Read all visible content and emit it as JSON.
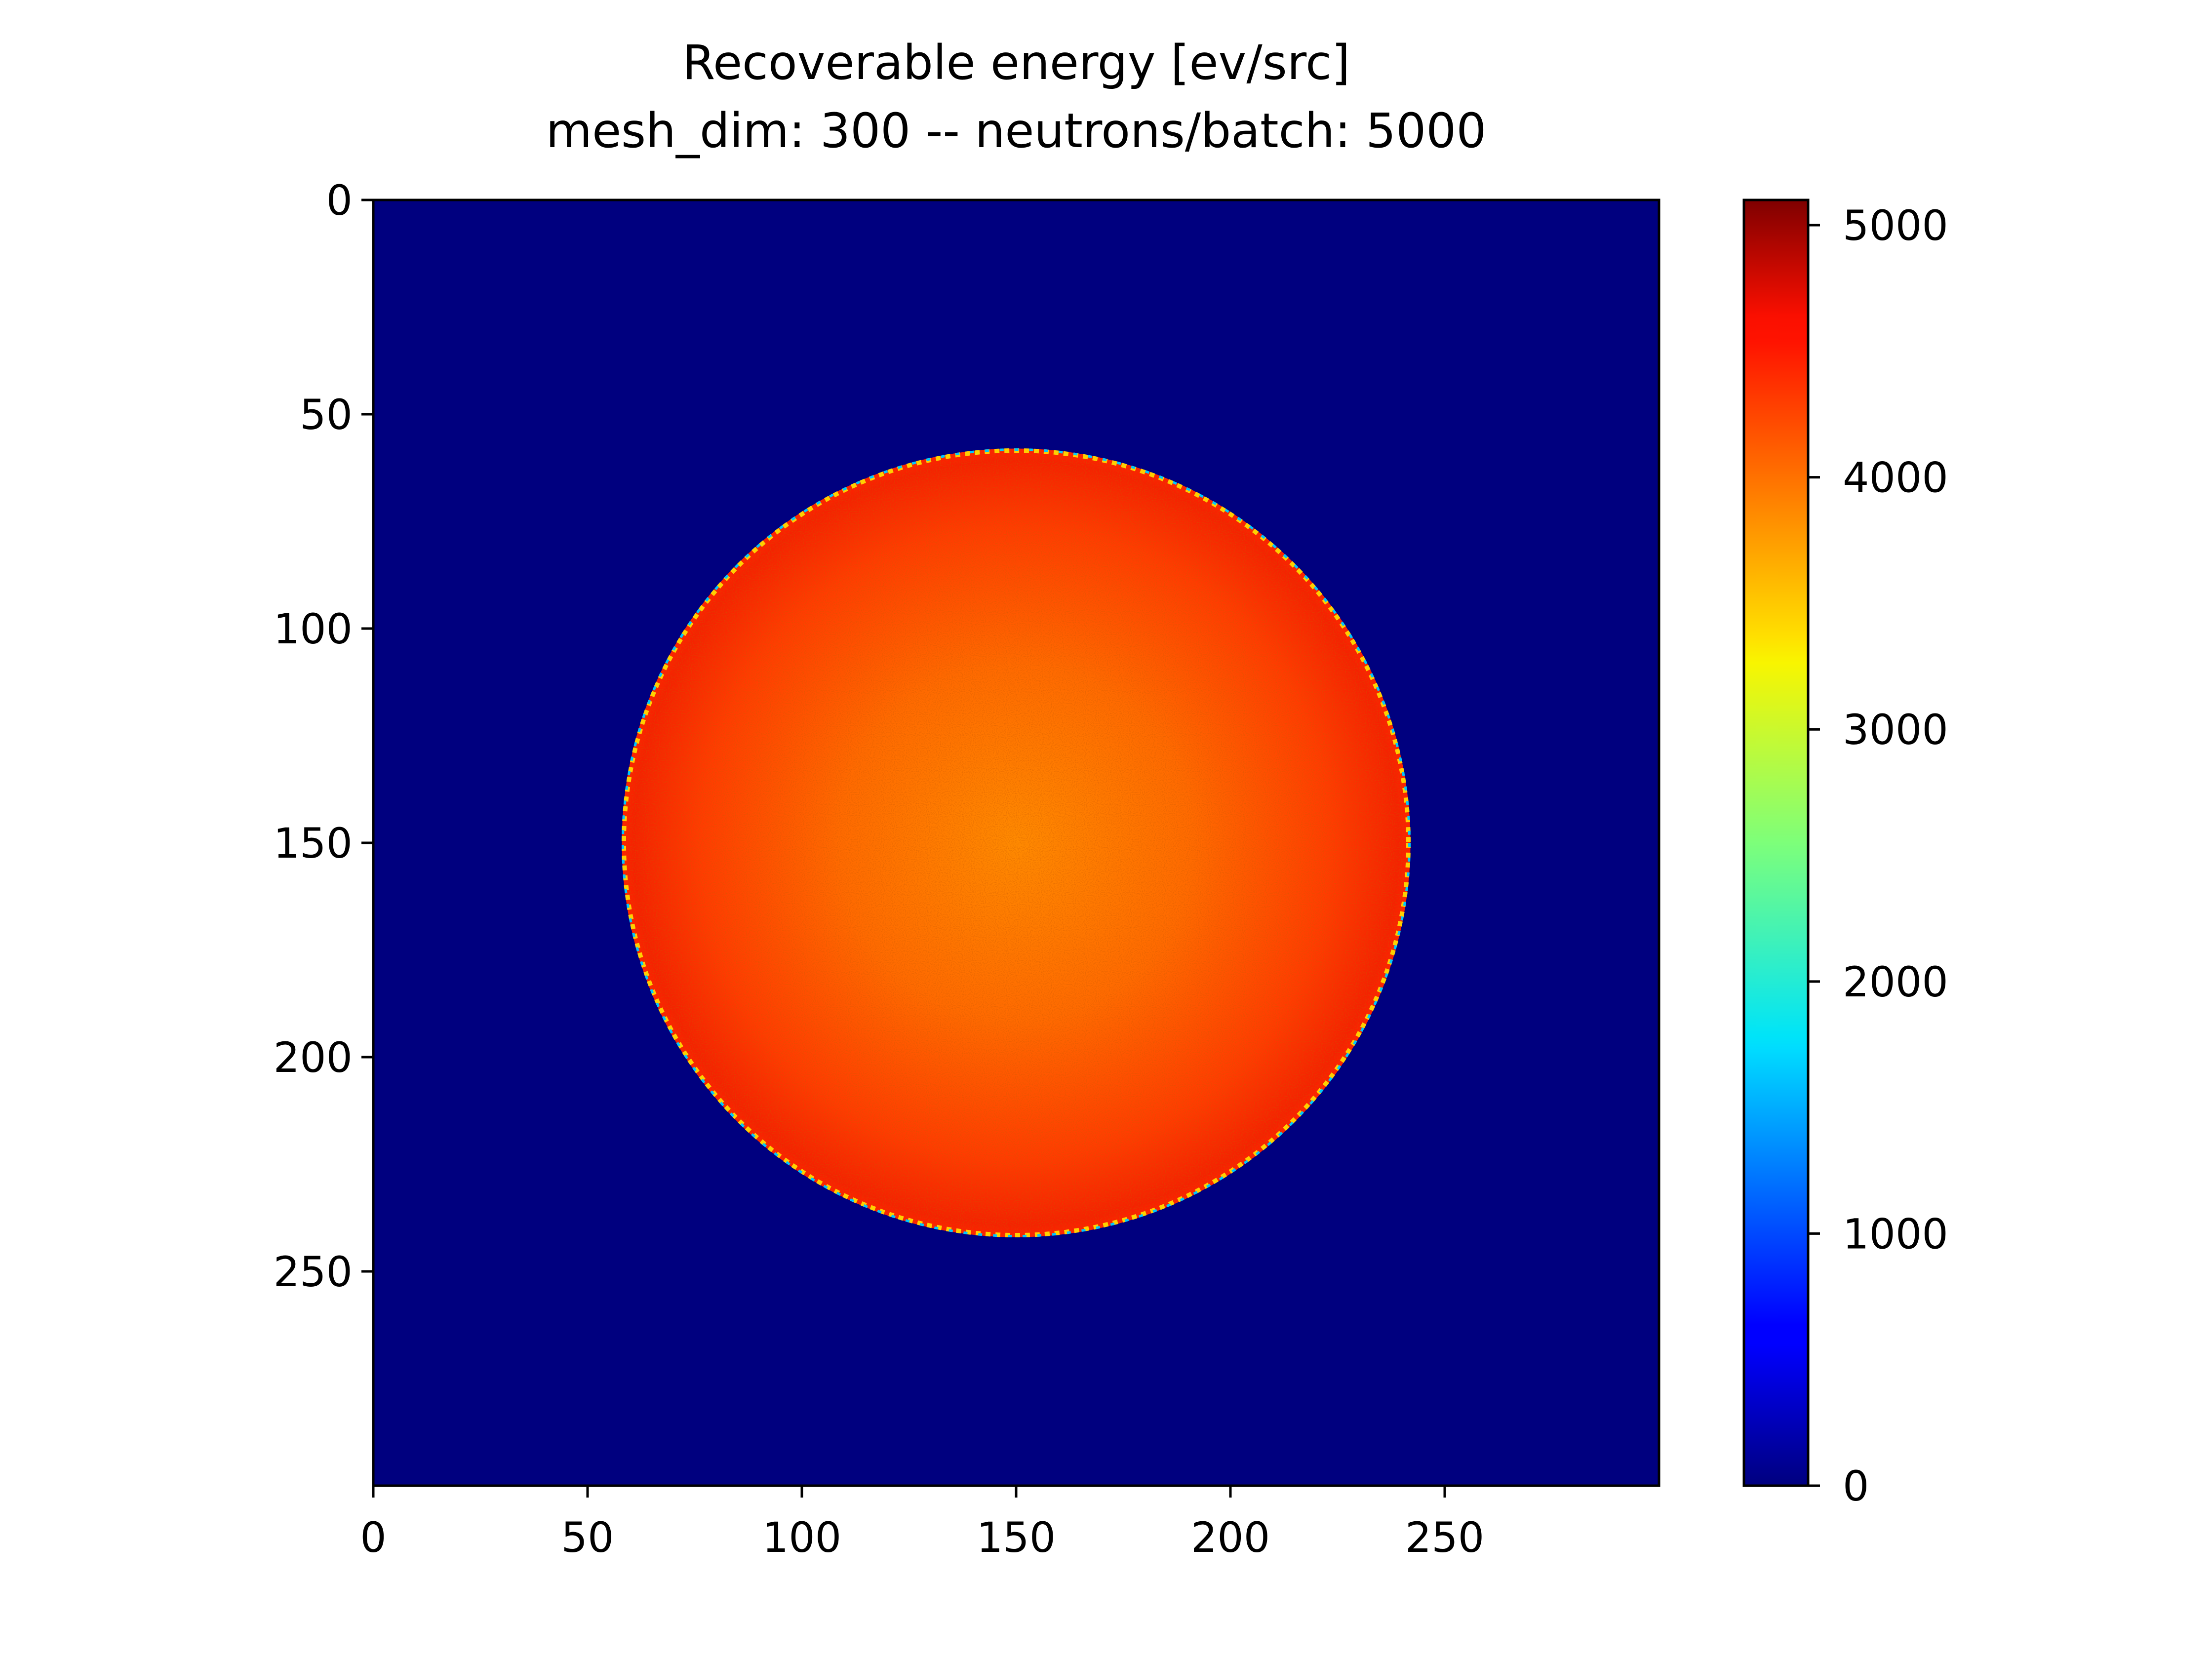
{
  "chart_data": {
    "type": "heatmap",
    "title": "Recoverable energy [ev/src]",
    "subtitle": "mesh_dim: 300 -- neutrons/batch: 5000",
    "xlabel": "",
    "ylabel": "",
    "xlim": [
      0,
      300
    ],
    "ylim": [
      300,
      0
    ],
    "x_ticks": [
      0,
      50,
      100,
      150,
      200,
      250
    ],
    "y_ticks": [
      0,
      50,
      100,
      150,
      200,
      250
    ],
    "x_tick_labels": [
      "0",
      "50",
      "100",
      "150",
      "200",
      "250"
    ],
    "y_tick_labels": [
      "0",
      "50",
      "100",
      "150",
      "200",
      "250"
    ],
    "mesh_dim": 300,
    "neutrons_per_batch": 5000,
    "colormap": "jet",
    "colorbar": {
      "min": 0,
      "max": 5100,
      "ticks": [
        0,
        1000,
        2000,
        3000,
        4000,
        5000
      ],
      "tick_labels": [
        "0",
        "1000",
        "2000",
        "3000",
        "4000",
        "5000"
      ]
    },
    "background_value": 0,
    "disc": {
      "center_x": 150,
      "center_y": 150,
      "radius": 92,
      "center_value": 4150,
      "edge_value": 4900,
      "rim_value": 3000
    },
    "grid": false
  }
}
